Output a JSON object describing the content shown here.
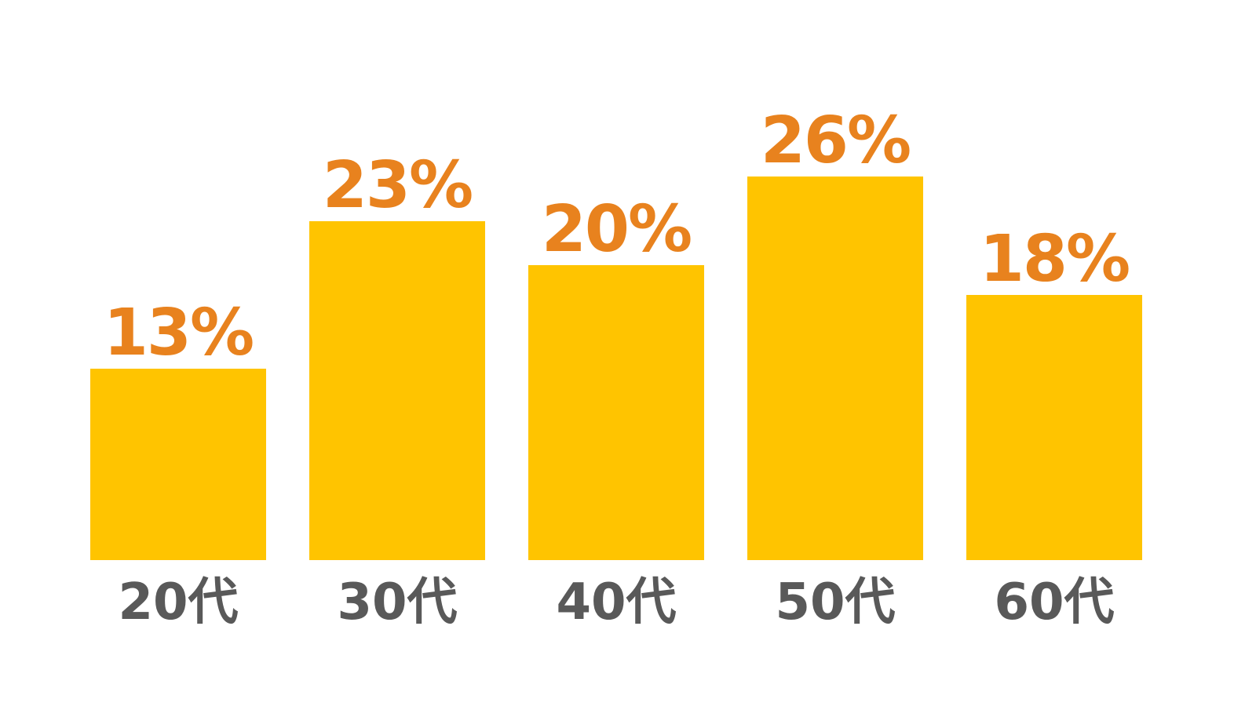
{
  "chart_data": {
    "type": "bar",
    "categories": [
      "20代",
      "30代",
      "40代",
      "50代",
      "60代"
    ],
    "values": [
      13,
      23,
      20,
      26,
      18
    ],
    "value_labels": [
      "13%",
      "23%",
      "20%",
      "26%",
      "18%"
    ],
    "title": "",
    "xlabel": "",
    "ylabel": "",
    "ylim": [
      0,
      30
    ],
    "grid": false,
    "legend": false,
    "axes_visible": false,
    "colors": {
      "bar": "#FFC400",
      "value_label": "#E8821E",
      "category_label": "#595959",
      "background": "#FFFFFF"
    }
  }
}
